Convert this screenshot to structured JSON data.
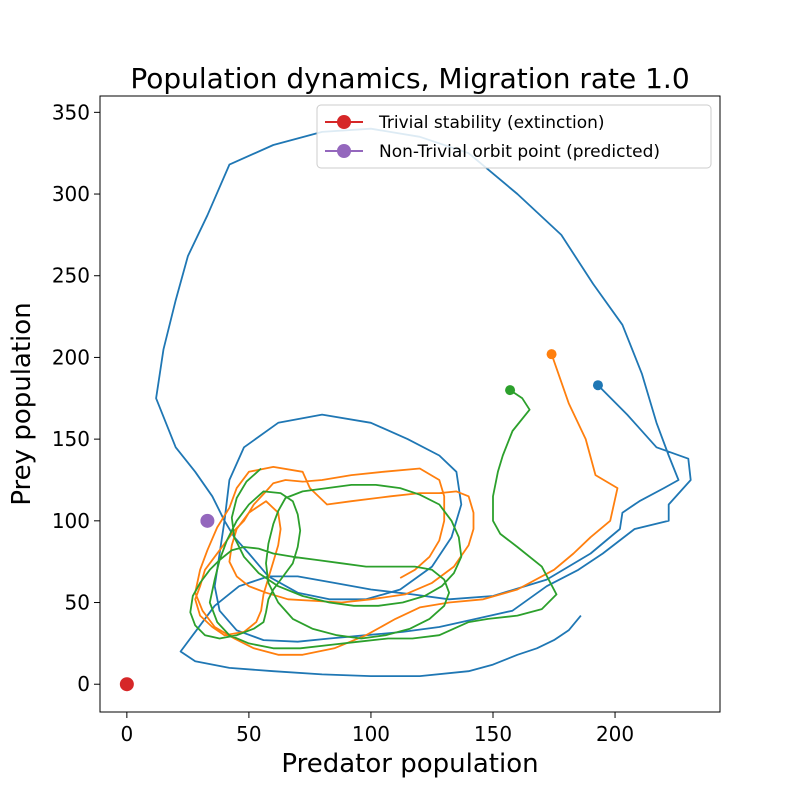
{
  "chart_data": {
    "type": "line",
    "title": "Population dynamics, Migration rate 1.0",
    "xlabel": "Predator population",
    "ylabel": "Prey population",
    "xlim": [
      -11,
      243
    ],
    "ylim": [
      -17,
      360
    ],
    "xticks": [
      0,
      50,
      100,
      150,
      200
    ],
    "yticks": [
      0,
      50,
      100,
      150,
      200,
      250,
      300,
      350
    ],
    "grid": false,
    "legend_position": "top-right",
    "legend": [
      {
        "label": "Trivial stability (extinction)",
        "color": "#d62728"
      },
      {
        "label": "Non-Trivial orbit point (predicted)",
        "color": "#9467bd"
      }
    ],
    "markers": [
      {
        "name": "Trivial stability (extinction)",
        "x": 0,
        "y": 0,
        "color": "#d62728"
      },
      {
        "name": "Non-Trivial orbit point (predicted)",
        "x": 33,
        "y": 100,
        "color": "#9467bd"
      }
    ],
    "series": [
      {
        "color": "#1f77b4",
        "start": [
          193,
          183
        ],
        "points": [
          [
            193,
            183
          ],
          [
            205,
            165
          ],
          [
            217,
            145
          ],
          [
            230,
            138
          ],
          [
            231,
            125
          ],
          [
            222,
            110
          ],
          [
            222,
            100
          ],
          [
            208,
            95
          ],
          [
            195,
            80
          ],
          [
            185,
            70
          ],
          [
            172,
            60
          ],
          [
            158,
            45
          ],
          [
            143,
            40
          ],
          [
            128,
            35
          ],
          [
            113,
            32
          ],
          [
            98,
            30
          ],
          [
            83,
            28
          ],
          [
            70,
            26
          ],
          [
            56,
            27
          ],
          [
            45,
            33
          ],
          [
            38,
            45
          ],
          [
            36,
            60
          ],
          [
            38,
            80
          ],
          [
            40,
            100
          ],
          [
            42,
            125
          ],
          [
            48,
            145
          ],
          [
            62,
            160
          ],
          [
            80,
            165
          ],
          [
            100,
            160
          ],
          [
            115,
            150
          ],
          [
            128,
            140
          ],
          [
            135,
            130
          ],
          [
            137,
            110
          ],
          [
            133,
            90
          ],
          [
            125,
            72
          ],
          [
            112,
            58
          ],
          [
            98,
            52
          ],
          [
            83,
            52
          ],
          [
            70,
            56
          ],
          [
            58,
            66
          ],
          [
            50,
            80
          ],
          [
            44,
            90
          ],
          [
            40,
            100
          ],
          [
            35,
            115
          ],
          [
            28,
            130
          ],
          [
            20,
            145
          ],
          [
            12,
            175
          ],
          [
            15,
            205
          ],
          [
            20,
            235
          ],
          [
            25,
            262
          ],
          [
            33,
            287
          ],
          [
            42,
            318
          ],
          [
            60,
            330
          ],
          [
            80,
            338
          ],
          [
            100,
            340
          ],
          [
            120,
            335
          ],
          [
            140,
            325
          ],
          [
            160,
            300
          ],
          [
            178,
            275
          ],
          [
            191,
            245
          ],
          [
            203,
            220
          ],
          [
            211,
            190
          ],
          [
            217,
            160
          ],
          [
            222,
            140
          ],
          [
            226,
            125
          ],
          [
            220,
            120
          ],
          [
            210,
            112
          ],
          [
            203,
            105
          ],
          [
            202,
            95
          ],
          [
            190,
            80
          ],
          [
            172,
            64
          ],
          [
            150,
            54
          ],
          [
            132,
            52
          ],
          [
            117,
            55
          ],
          [
            100,
            58
          ],
          [
            85,
            62
          ],
          [
            70,
            66
          ],
          [
            58,
            66
          ],
          [
            46,
            60
          ],
          [
            36,
            48
          ],
          [
            28,
            32
          ],
          [
            22,
            20
          ],
          [
            28,
            14
          ],
          [
            42,
            10
          ],
          [
            60,
            8
          ],
          [
            80,
            6
          ],
          [
            100,
            5
          ],
          [
            120,
            5
          ],
          [
            140,
            8
          ],
          [
            150,
            12
          ],
          [
            160,
            18
          ],
          [
            168,
            22
          ],
          [
            175,
            27
          ],
          [
            181,
            33
          ],
          [
            186,
            42
          ]
        ]
      },
      {
        "color": "#ff7f0e",
        "start": [
          174,
          202
        ],
        "points": [
          [
            174,
            202
          ],
          [
            181,
            172
          ],
          [
            188,
            150
          ],
          [
            192,
            128
          ],
          [
            201,
            120
          ],
          [
            198,
            100
          ],
          [
            190,
            90
          ],
          [
            183,
            80
          ],
          [
            175,
            70
          ],
          [
            160,
            58
          ],
          [
            146,
            52
          ],
          [
            132,
            50
          ],
          [
            120,
            47
          ],
          [
            110,
            40
          ],
          [
            98,
            30
          ],
          [
            85,
            22
          ],
          [
            72,
            18
          ],
          [
            62,
            18
          ],
          [
            52,
            22
          ],
          [
            44,
            28
          ],
          [
            36,
            35
          ],
          [
            31,
            45
          ],
          [
            28,
            56
          ],
          [
            30,
            70
          ],
          [
            33,
            82
          ],
          [
            37,
            96
          ],
          [
            42,
            108
          ],
          [
            45,
            120
          ],
          [
            50,
            130
          ],
          [
            60,
            133
          ],
          [
            72,
            130
          ],
          [
            75,
            120
          ],
          [
            82,
            110
          ],
          [
            92,
            112
          ],
          [
            108,
            115
          ],
          [
            120,
            117
          ],
          [
            128,
            117
          ],
          [
            135,
            118
          ],
          [
            140,
            115
          ],
          [
            142,
            105
          ],
          [
            142,
            95
          ],
          [
            140,
            85
          ],
          [
            134,
            72
          ],
          [
            125,
            62
          ],
          [
            114,
            55
          ],
          [
            100,
            52
          ],
          [
            88,
            50
          ],
          [
            77,
            51
          ],
          [
            66,
            52
          ],
          [
            57,
            56
          ],
          [
            50,
            60
          ],
          [
            45,
            66
          ],
          [
            42,
            75
          ],
          [
            43,
            85
          ],
          [
            45,
            95
          ],
          [
            50,
            105
          ],
          [
            57,
            112
          ],
          [
            62,
            105
          ],
          [
            63,
            95
          ],
          [
            62,
            85
          ],
          [
            60,
            75
          ],
          [
            58,
            65
          ],
          [
            56,
            55
          ],
          [
            55,
            45
          ],
          [
            53,
            38
          ],
          [
            48,
            32
          ],
          [
            40,
            30
          ],
          [
            35,
            35
          ],
          [
            30,
            42
          ],
          [
            28,
            52
          ],
          [
            30,
            60
          ],
          [
            32,
            70
          ],
          [
            36,
            78
          ],
          [
            40,
            86
          ],
          [
            44,
            94
          ],
          [
            48,
            100
          ],
          [
            52,
            110
          ],
          [
            57,
            118
          ],
          [
            60,
            123
          ],
          [
            65,
            125
          ],
          [
            72,
            124
          ],
          [
            80,
            125
          ],
          [
            92,
            128
          ],
          [
            105,
            130
          ],
          [
            120,
            132
          ],
          [
            128,
            125
          ],
          [
            130,
            115
          ],
          [
            130,
            100
          ],
          [
            128,
            88
          ],
          [
            124,
            78
          ],
          [
            118,
            70
          ],
          [
            112,
            65
          ]
        ]
      },
      {
        "color": "#2ca02c",
        "start": [
          157,
          180
        ],
        "points": [
          [
            157,
            180
          ],
          [
            162,
            175
          ],
          [
            165,
            168
          ],
          [
            158,
            155
          ],
          [
            154,
            140
          ],
          [
            152,
            130
          ],
          [
            150,
            115
          ],
          [
            150,
            100
          ],
          [
            153,
            92
          ],
          [
            160,
            84
          ],
          [
            170,
            72
          ],
          [
            176,
            55
          ],
          [
            170,
            46
          ],
          [
            160,
            42
          ],
          [
            148,
            40
          ],
          [
            140,
            38
          ],
          [
            128,
            30
          ],
          [
            117,
            28
          ],
          [
            107,
            28
          ],
          [
            95,
            26
          ],
          [
            83,
            24
          ],
          [
            71,
            22
          ],
          [
            60,
            22
          ],
          [
            50,
            25
          ],
          [
            42,
            30
          ],
          [
            37,
            38
          ],
          [
            34,
            50
          ],
          [
            36,
            64
          ],
          [
            38,
            76
          ],
          [
            41,
            88
          ],
          [
            45,
            100
          ],
          [
            50,
            110
          ],
          [
            56,
            118
          ],
          [
            63,
            117
          ],
          [
            68,
            112
          ],
          [
            70,
            104
          ],
          [
            71,
            94
          ],
          [
            70,
            84
          ],
          [
            68,
            74
          ],
          [
            64,
            66
          ],
          [
            60,
            58
          ],
          [
            58,
            52
          ],
          [
            57,
            44
          ],
          [
            56,
            38
          ],
          [
            52,
            34
          ],
          [
            45,
            30
          ],
          [
            38,
            28
          ],
          [
            32,
            30
          ],
          [
            28,
            36
          ],
          [
            26,
            44
          ],
          [
            27,
            54
          ],
          [
            30,
            62
          ],
          [
            34,
            70
          ],
          [
            38,
            76
          ],
          [
            43,
            82
          ],
          [
            48,
            84
          ],
          [
            54,
            83
          ],
          [
            60,
            80
          ],
          [
            68,
            78
          ],
          [
            78,
            76
          ],
          [
            88,
            74
          ],
          [
            98,
            72
          ],
          [
            108,
            72
          ],
          [
            118,
            72
          ],
          [
            125,
            70
          ],
          [
            130,
            64
          ],
          [
            132,
            56
          ],
          [
            130,
            48
          ],
          [
            124,
            40
          ],
          [
            116,
            34
          ],
          [
            106,
            30
          ],
          [
            96,
            28
          ],
          [
            86,
            30
          ],
          [
            76,
            34
          ],
          [
            68,
            40
          ],
          [
            62,
            50
          ],
          [
            58,
            62
          ],
          [
            57,
            74
          ],
          [
            58,
            86
          ],
          [
            60,
            98
          ],
          [
            62,
            106
          ],
          [
            65,
            114
          ],
          [
            72,
            118
          ],
          [
            82,
            120
          ],
          [
            92,
            122
          ],
          [
            102,
            122
          ],
          [
            112,
            120
          ],
          [
            120,
            116
          ],
          [
            128,
            110
          ],
          [
            133,
            100
          ],
          [
            136,
            90
          ],
          [
            137,
            78
          ],
          [
            134,
            68
          ],
          [
            129,
            60
          ],
          [
            122,
            54
          ],
          [
            113,
            50
          ],
          [
            103,
            48
          ],
          [
            93,
            48
          ],
          [
            83,
            50
          ],
          [
            72,
            54
          ],
          [
            62,
            60
          ],
          [
            54,
            68
          ],
          [
            48,
            78
          ],
          [
            44,
            90
          ],
          [
            43,
            102
          ],
          [
            45,
            114
          ],
          [
            49,
            124
          ],
          [
            55,
            132
          ]
        ]
      }
    ]
  }
}
